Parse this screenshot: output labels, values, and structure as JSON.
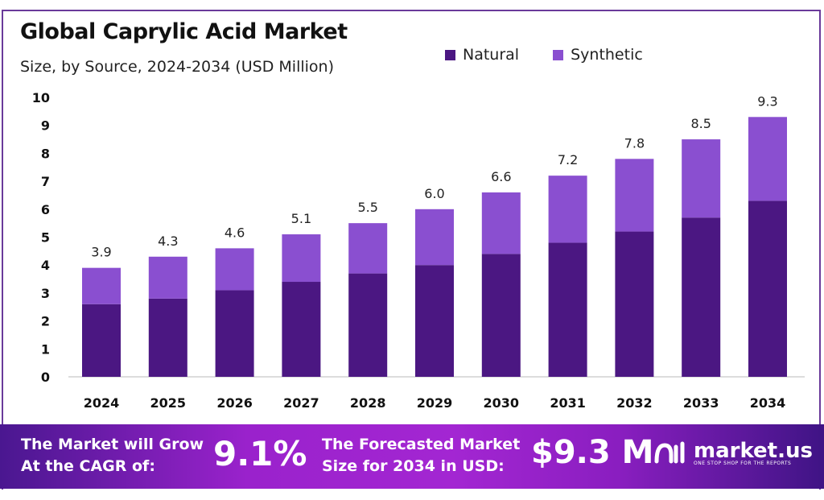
{
  "chart_data": {
    "type": "bar",
    "stacked": true,
    "title": "Global Caprylic Acid Market",
    "subtitle": "Size, by Source, 2024-2034 (USD Million)",
    "categories": [
      "2024",
      "2025",
      "2026",
      "2027",
      "2028",
      "2029",
      "2030",
      "2031",
      "2032",
      "2033",
      "2034"
    ],
    "series": [
      {
        "name": "Natural",
        "color": "#4b1782",
        "values": [
          2.6,
          2.8,
          3.1,
          3.4,
          3.7,
          4.0,
          4.4,
          4.8,
          5.2,
          5.7,
          6.3
        ]
      },
      {
        "name": "Synthetic",
        "color": "#8a4fd0",
        "values": [
          1.3,
          1.5,
          1.5,
          1.7,
          1.8,
          2.0,
          2.2,
          2.4,
          2.6,
          2.8,
          3.0
        ]
      }
    ],
    "totals": [
      "3.9",
      "4.3",
      "4.6",
      "5.1",
      "5.5",
      "6.0",
      "6.6",
      "7.2",
      "7.8",
      "8.5",
      "9.3"
    ],
    "ylim": [
      0,
      10
    ],
    "yticks": [
      "0",
      "1",
      "2",
      "3",
      "4",
      "5",
      "6",
      "7",
      "8",
      "9",
      "10"
    ],
    "grid": false,
    "legend": "top-right"
  },
  "banner": {
    "cagr_label_1": "The Market will Grow",
    "cagr_label_2": "At the CAGR of:",
    "cagr_value": "9.1%",
    "forecast_label_1": "The Forecasted Market",
    "forecast_label_2": "Size for 2034 in USD:",
    "forecast_value": "$9.3 M",
    "logo_name": "market.us",
    "logo_tagline": "ONE STOP SHOP FOR THE REPORTS"
  }
}
